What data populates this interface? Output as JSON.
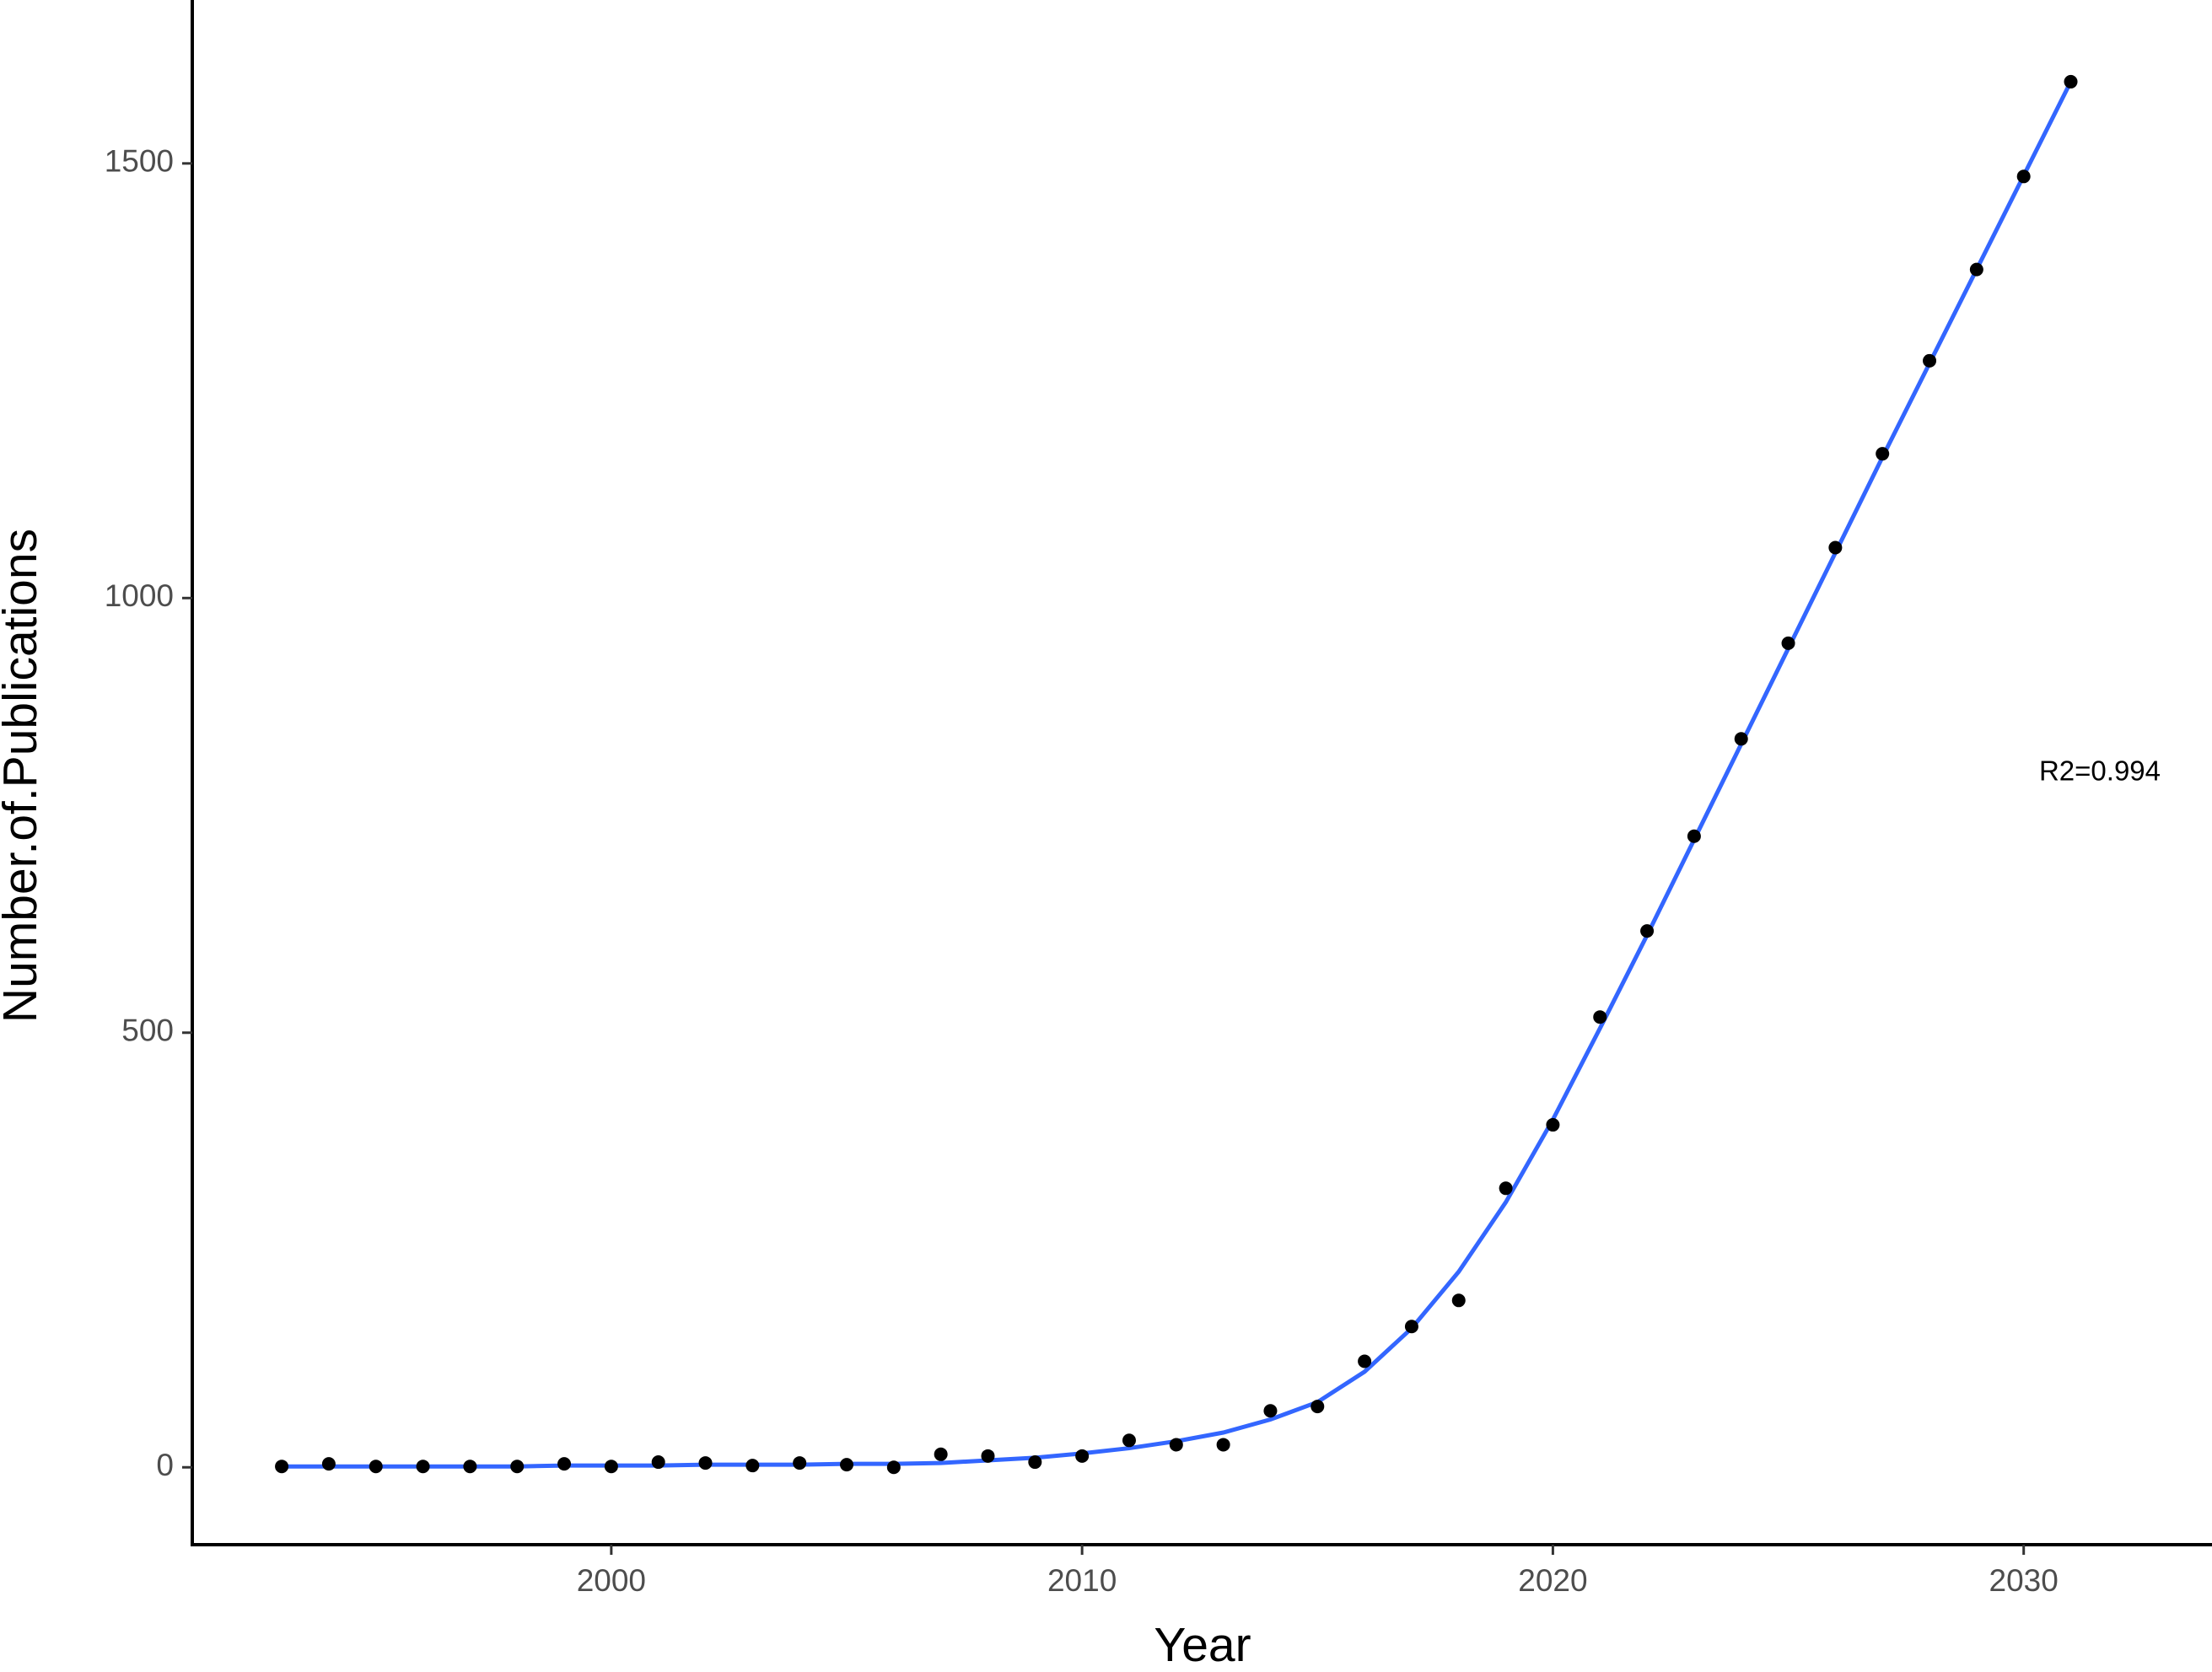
{
  "chart_data": {
    "type": "scatter",
    "x_label": "Year",
    "y_label": "Number.of.Publications",
    "annotation": "R2=0.994",
    "x": [
      1993,
      1994,
      1995,
      1996,
      1997,
      1998,
      1999,
      2000,
      2001,
      2002,
      2003,
      2004,
      2005,
      2006,
      2007,
      2008,
      2009,
      2010,
      2011,
      2012,
      2013,
      2014,
      2015,
      2016,
      2017,
      2018,
      2019,
      2020,
      2021,
      2022,
      2023,
      2024,
      2025,
      2026,
      2027,
      2028,
      2029,
      2030,
      2031
    ],
    "series": [
      {
        "color": "#000000",
        "values": [
          1,
          4,
          1,
          1,
          1,
          1,
          4,
          1,
          6,
          5,
          2,
          5,
          3,
          0,
          15,
          13,
          6,
          13,
          31,
          26,
          26,
          65,
          70,
          122,
          162,
          192,
          321,
          394,
          518,
          617,
          726,
          838,
          948,
          1058,
          1166,
          1273,
          1378,
          1485,
          1594
        ]
      },
      {
        "color": "#3366ff",
        "values": [
          1,
          1,
          1,
          1,
          1,
          1,
          2,
          2,
          2,
          3,
          3,
          3,
          4,
          4,
          5,
          8,
          11,
          16,
          22,
          30,
          40,
          55,
          75,
          110,
          160,
          225,
          305,
          400,
          505,
          612,
          722,
          832,
          942,
          1052,
          1162,
          1270,
          1378,
          1486,
          1594
        ]
      }
    ],
    "xlim": [
      1991.1,
      2034
    ],
    "ylim": [
      -89,
      1688
    ],
    "xticks": [
      2000,
      2010,
      2020,
      2030
    ],
    "yticks": [
      0,
      500,
      1000,
      1500
    ]
  }
}
